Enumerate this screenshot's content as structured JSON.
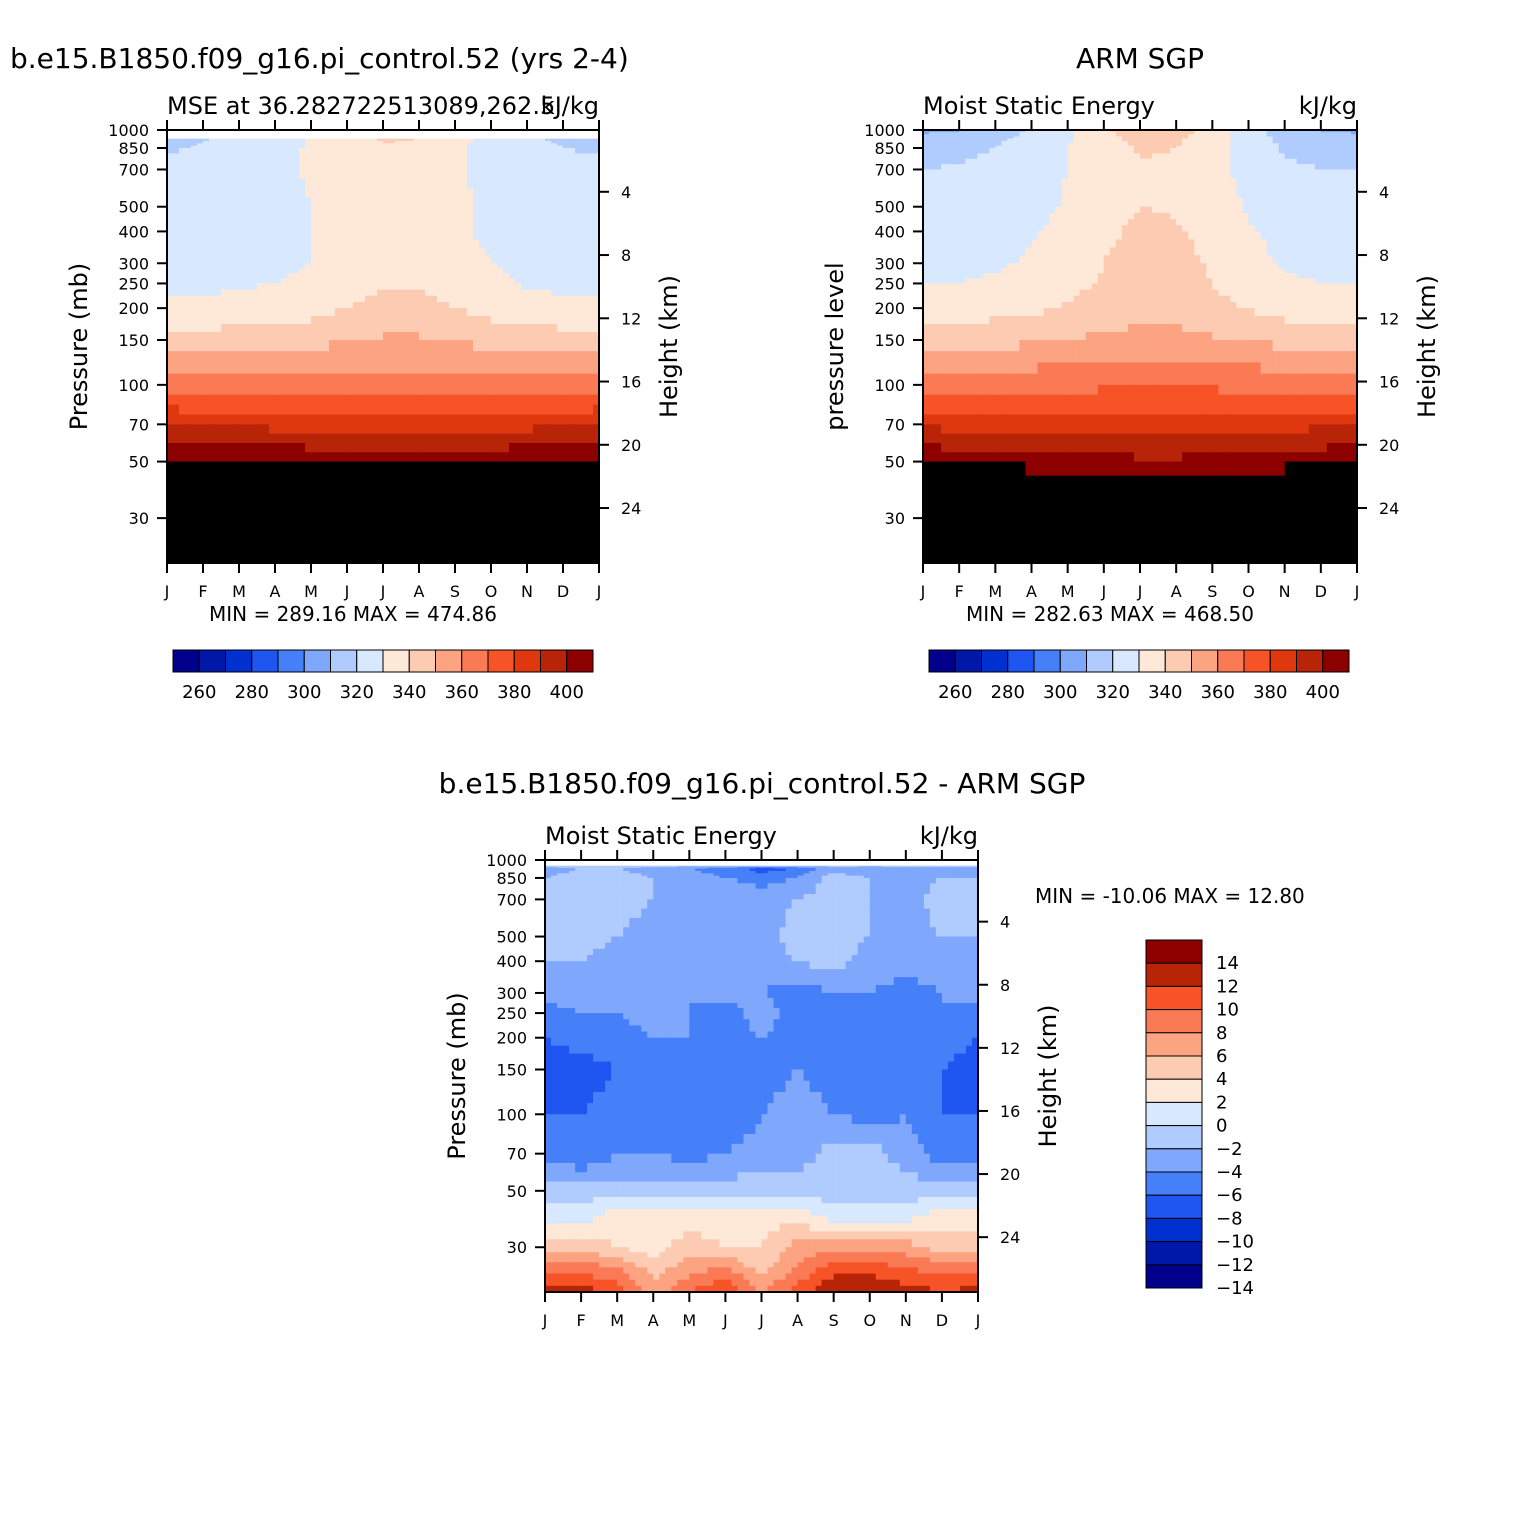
{
  "palette": {
    "mse": [
      "#00008c",
      "#0018a8",
      "#0030d0",
      "#1f55f0",
      "#4680f8",
      "#7fa8fc",
      "#b0cbfd",
      "#d8e8fe",
      "#fee9d8",
      "#fdcbb2",
      "#fca382",
      "#fa7a55",
      "#f65326",
      "#e0380e",
      "#b82408",
      "#8c0000"
    ],
    "diff": [
      "#00008c",
      "#0018a8",
      "#0030d0",
      "#1f55f0",
      "#4680f8",
      "#7fa8fc",
      "#b0cbfd",
      "#d8e8fe",
      "#fee9d8",
      "#fdcbb2",
      "#fca382",
      "#fa7a55",
      "#f65326",
      "#b82408",
      "#8c0000"
    ]
  },
  "panels": {
    "model": {
      "figure_title": "b.e15.B1850.f09_g16.pi_control.52 (yrs 2-4)",
      "left_string": "MSE at 36.282722513089,262.5",
      "right_string": "kJ/kg",
      "ylabel_left": "Pressure (mb)",
      "ylabel_right": "Height (km)",
      "minmax": "MIN = 289.16 MAX = 474.86"
    },
    "obs": {
      "figure_title": "ARM SGP",
      "left_string": "Moist Static Energy",
      "right_string": "kJ/kg",
      "ylabel_left": "pressure level",
      "ylabel_right": "Height (km)",
      "minmax": "MIN = 282.63 MAX = 468.50"
    },
    "diff": {
      "figure_title": "b.e15.B1850.f09_g16.pi_control.52 - ARM SGP",
      "left_string": "Moist Static Energy",
      "right_string": "kJ/kg",
      "ylabel_left": "Pressure (mb)",
      "ylabel_right": "Height (km)",
      "minmax": "MIN = -10.06 MAX =  12.80"
    }
  },
  "chart_data": [
    {
      "type": "heatmap",
      "title": "b.e15.B1850.f09_g16.pi_control.52 (yrs 2-4)",
      "ylabel": "Pressure (mb)",
      "y2label": "Height (km)",
      "x_ticks": [
        "J",
        "F",
        "M",
        "A",
        "M",
        "J",
        "J",
        "A",
        "S",
        "O",
        "N",
        "D",
        "J"
      ],
      "p_ticks": [
        "30",
        "50",
        "70",
        "100",
        "150",
        "200",
        "250",
        "300",
        "400",
        "500",
        "700",
        "850",
        "1000"
      ],
      "z_ticks": [
        "24",
        "20",
        "16",
        "12",
        "8",
        "4"
      ],
      "colorbar_labels": [
        "260",
        "280",
        "300",
        "320",
        "340",
        "360",
        "380",
        "400"
      ],
      "contour_levels": [
        250,
        260,
        270,
        280,
        290,
        300,
        310,
        320,
        330,
        340,
        350,
        360,
        370,
        380,
        390,
        400
      ],
      "ylim": [
        1000,
        20
      ],
      "y_scale": "log",
      "min": 289.16,
      "max": 474.86,
      "levels_p": [
        925,
        850,
        700,
        500,
        400,
        300,
        250,
        200,
        150,
        100,
        70,
        50,
        30,
        20
      ],
      "months": [
        "Jan",
        "Feb",
        "Mar",
        "Apr",
        "May",
        "Jun",
        "Jul",
        "Aug",
        "Sep",
        "Oct",
        "Nov",
        "Dec",
        "Jan"
      ],
      "values": [
        [
          307,
          309,
          312,
          316,
          321,
          326,
          331,
          330,
          323,
          316,
          311,
          309,
          307
        ],
        [
          309,
          311,
          314,
          317,
          321,
          325,
          329,
          328,
          322,
          317,
          312,
          310,
          309
        ],
        [
          312,
          313,
          315,
          318,
          321,
          323,
          325,
          325,
          321,
          318,
          315,
          313,
          312
        ],
        [
          314,
          315,
          316,
          318,
          320,
          322,
          323,
          323,
          321,
          319,
          316,
          315,
          314
        ],
        [
          315,
          315,
          316,
          318,
          320,
          322,
          324,
          324,
          321,
          319,
          316,
          315,
          315
        ],
        [
          316,
          316,
          317,
          318,
          320,
          323,
          326,
          326,
          322,
          320,
          317,
          316,
          316
        ],
        [
          318,
          318,
          319,
          320,
          322,
          325,
          329,
          329,
          325,
          322,
          319,
          318,
          318
        ],
        [
          322,
          322,
          323,
          324,
          326,
          330,
          334,
          334,
          330,
          326,
          324,
          322,
          322
        ],
        [
          334,
          334,
          335,
          336,
          337,
          339,
          341,
          341,
          339,
          337,
          336,
          334,
          334
        ],
        [
          354,
          353,
          353,
          353,
          354,
          354,
          355,
          355,
          354,
          354,
          354,
          354,
          354
        ],
        [
          380,
          379,
          378,
          377,
          376,
          375,
          374,
          374,
          375,
          376,
          377,
          378,
          380
        ],
        [
          402,
          401,
          400,
          399,
          398,
          396,
          395,
          395,
          396,
          397,
          399,
          401,
          402
        ],
        [
          450,
          448,
          446,
          444,
          442,
          440,
          439,
          439,
          440,
          442,
          444,
          447,
          450
        ],
        [
          474,
          472,
          470,
          468,
          466,
          464,
          462,
          462,
          464,
          466,
          468,
          471,
          474
        ]
      ]
    },
    {
      "type": "heatmap",
      "title": "ARM SGP",
      "ylabel": "pressure level",
      "y2label": "Height (km)",
      "x_ticks": [
        "J",
        "F",
        "M",
        "A",
        "M",
        "J",
        "J",
        "A",
        "S",
        "O",
        "N",
        "D",
        "J"
      ],
      "p_ticks": [
        "30",
        "50",
        "70",
        "100",
        "150",
        "200",
        "250",
        "300",
        "400",
        "500",
        "700",
        "850",
        "1000"
      ],
      "z_ticks": [
        "24",
        "20",
        "16",
        "12",
        "8",
        "4"
      ],
      "colorbar_labels": [
        "260",
        "280",
        "300",
        "320",
        "340",
        "360",
        "380",
        "400"
      ],
      "contour_levels": [
        250,
        260,
        270,
        280,
        290,
        300,
        310,
        320,
        330,
        340,
        350,
        360,
        370,
        380,
        390,
        400
      ],
      "ylim": [
        1000,
        20
      ],
      "y_scale": "log",
      "min": 282.63,
      "max": 468.5,
      "levels_p": [
        1000,
        925,
        850,
        700,
        500,
        400,
        300,
        250,
        200,
        150,
        100,
        70,
        50,
        30,
        20
      ],
      "months": [
        "Jan",
        "Feb",
        "Mar",
        "Apr",
        "May",
        "Jun",
        "Jul",
        "Aug",
        "Sep",
        "Oct",
        "Nov",
        "Dec",
        "Jan"
      ],
      "values": [
        [
          298,
          299,
          304,
          311,
          319,
          328,
          337,
          335,
          325,
          314,
          304,
          299,
          298
        ],
        [
          303,
          304,
          308,
          313,
          319,
          327,
          333,
          332,
          324,
          315,
          307,
          304,
          303
        ],
        [
          306,
          307,
          310,
          315,
          320,
          326,
          331,
          330,
          324,
          316,
          309,
          306,
          306
        ],
        [
          310,
          311,
          313,
          316,
          320,
          325,
          329,
          328,
          323,
          317,
          312,
          310,
          310
        ],
        [
          314,
          314,
          315,
          317,
          321,
          326,
          330,
          329,
          324,
          319,
          315,
          314,
          314
        ],
        [
          316,
          316,
          317,
          319,
          323,
          328,
          332,
          331,
          327,
          321,
          317,
          316,
          316
        ],
        [
          318,
          318,
          319,
          321,
          325,
          330,
          333,
          333,
          329,
          323,
          319,
          318,
          318
        ],
        [
          320,
          320,
          321,
          323,
          327,
          331,
          334,
          334,
          330,
          325,
          321,
          320,
          320
        ],
        [
          324,
          325,
          326,
          328,
          331,
          334,
          336,
          336,
          333,
          329,
          326,
          324,
          324
        ],
        [
          336,
          336,
          337,
          338,
          340,
          342,
          343,
          343,
          341,
          339,
          337,
          336,
          336
        ],
        [
          356,
          356,
          356,
          357,
          357,
          358,
          358,
          358,
          358,
          357,
          357,
          356,
          356
        ],
        [
          378,
          377,
          377,
          376,
          375,
          375,
          374,
          374,
          375,
          376,
          377,
          378,
          378
        ],
        [
          398,
          397,
          396,
          395,
          394,
          393,
          392,
          392,
          393,
          394,
          395,
          397,
          398
        ],
        [
          440,
          438,
          436,
          434,
          432,
          430,
          429,
          429,
          430,
          432,
          434,
          437,
          440
        ],
        [
          466,
          464,
          462,
          460,
          458,
          456,
          455,
          455,
          456,
          458,
          460,
          463,
          466
        ]
      ]
    },
    {
      "type": "heatmap",
      "title": "b.e15.B1850.f09_g16.pi_control.52 - ARM SGP",
      "ylabel": "Pressure (mb)",
      "y2label": "Height (km)",
      "x_ticks": [
        "J",
        "F",
        "M",
        "A",
        "M",
        "J",
        "J",
        "A",
        "S",
        "O",
        "N",
        "D",
        "J"
      ],
      "p_ticks": [
        "30",
        "50",
        "70",
        "100",
        "150",
        "200",
        "250",
        "300",
        "400",
        "500",
        "700",
        "850",
        "1000"
      ],
      "z_ticks": [
        "24",
        "20",
        "16",
        "12",
        "8",
        "4"
      ],
      "colorbar_labels": [
        "14",
        "12",
        "10",
        "8",
        "6",
        "4",
        "2",
        "0",
        "−2",
        "−4",
        "−6",
        "−8",
        "−10",
        "−12",
        "−14"
      ],
      "contour_levels": [
        -14,
        -12,
        -10,
        -8,
        -6,
        -4,
        -2,
        0,
        2,
        4,
        6,
        8,
        10,
        12,
        14
      ],
      "ylim": [
        1000,
        20
      ],
      "y_scale": "log",
      "min": -10.06,
      "max": 12.8,
      "levels_p": [
        950,
        925,
        850,
        700,
        500,
        400,
        300,
        250,
        200,
        150,
        100,
        70,
        50,
        40,
        30,
        25,
        20
      ],
      "months": [
        "Jan",
        "Feb",
        "Mar",
        "Apr",
        "May",
        "Jun",
        "Jul",
        "Aug",
        "Sep",
        "Oct",
        "Nov",
        "Dec",
        "Jan"
      ],
      "values": [
        [
          -3,
          -3,
          -3,
          -3,
          -3,
          -3,
          -3,
          -3,
          -3,
          -3,
          -3,
          -3,
          -3
        ],
        [
          -5,
          -4,
          -4,
          -5,
          -6,
          -7,
          -9,
          -8,
          -5,
          -6,
          -5,
          -5,
          -5
        ],
        [
          -4,
          -3,
          -3,
          -4,
          -5,
          -6,
          -7,
          -6,
          -3,
          -4,
          -5,
          -4,
          -4
        ],
        [
          -3,
          -3,
          -3,
          -4,
          -5,
          -4,
          -5,
          -4,
          -3,
          -4,
          -5,
          -3,
          -3
        ],
        [
          -3,
          -3,
          -4,
          -5,
          -5,
          -4,
          -5,
          -3,
          -3,
          -4,
          -5,
          -4,
          -4
        ],
        [
          -4,
          -4,
          -5,
          -6,
          -5,
          -5,
          -5,
          -4,
          -3,
          -5,
          -5,
          -5,
          -5
        ],
        [
          -5,
          -5,
          -5,
          -6,
          -6,
          -5,
          -6,
          -7,
          -6,
          -6,
          -7,
          -6,
          -5
        ],
        [
          -7,
          -6,
          -6,
          -5,
          -6,
          -7,
          -5,
          -7,
          -8,
          -7,
          -7,
          -6,
          -7
        ],
        [
          -8,
          -7,
          -7,
          -6,
          -6,
          -7,
          -6,
          -7,
          -8,
          -7,
          -7,
          -7,
          -8
        ],
        [
          -10,
          -9,
          -8,
          -7,
          -7,
          -8,
          -7,
          -6,
          -7,
          -8,
          -7,
          -8,
          -9
        ],
        [
          -8,
          -8,
          -7,
          -8,
          -7,
          -8,
          -6,
          -5,
          -6,
          -7,
          -6,
          -8,
          -8
        ],
        [
          -7,
          -8,
          -6,
          -6,
          -7,
          -6,
          -5,
          -5,
          -3,
          -3,
          -5,
          -7,
          -7
        ],
        [
          -3,
          -3,
          -3,
          -3,
          -3,
          -3,
          -3,
          -3,
          -3,
          -3,
          -3,
          -3,
          -3
        ],
        [
          -1,
          -1,
          1,
          1,
          1,
          1,
          1,
          1,
          -1,
          -1,
          -1,
          1,
          1
        ],
        [
          3,
          3,
          2,
          1,
          3,
          2,
          2,
          5,
          5,
          5,
          5,
          3,
          3
        ],
        [
          7,
          7,
          6,
          3,
          5,
          6,
          3,
          6,
          9,
          9,
          8,
          7,
          7
        ],
        [
          11,
          11,
          9,
          5,
          8,
          10,
          6,
          9,
          12,
          12,
          11,
          10,
          11
        ]
      ]
    }
  ]
}
